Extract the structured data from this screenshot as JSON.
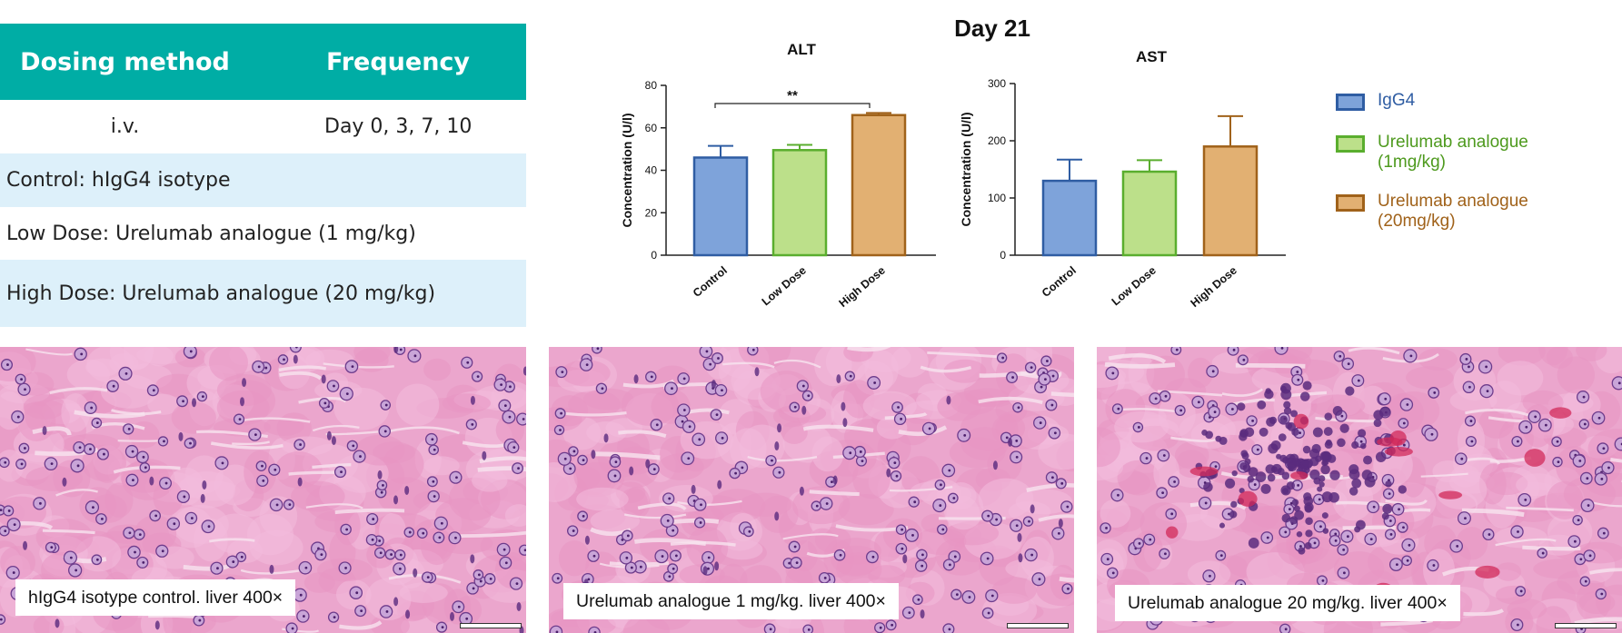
{
  "table": {
    "headers": [
      "Dosing method",
      "Frequency"
    ],
    "dosing_row": [
      "i.v.",
      "Day 0, 3, 7, 10"
    ],
    "groups": [
      "Control: hIgG4 isotype",
      "Low Dose: Urelumab analogue (1 mg/kg)",
      "High Dose: Urelumab analogue (20 mg/kg)"
    ]
  },
  "figure_title": "Day 21",
  "legend": [
    {
      "label": "IgG4",
      "fill": "#7EA3DA",
      "stroke": "#2F5DA3",
      "text_color": "#2F5DA3"
    },
    {
      "label": "Urelumab analogue (1mg/kg)",
      "fill": "#BCE08A",
      "stroke": "#5AAE2E",
      "text_color": "#4E9A1E"
    },
    {
      "label": "Urelumab analogue (20mg/kg)",
      "fill": "#E2B072",
      "stroke": "#A0621A",
      "text_color": "#A0621A"
    }
  ],
  "chart_data": [
    {
      "type": "bar",
      "title": "ALT",
      "ylabel": "Concentration (U/l)",
      "xlabel": "",
      "categories": [
        "Control",
        "Low Dose",
        "High Dose"
      ],
      "values": [
        46,
        49.5,
        66
      ],
      "errors": [
        5.5,
        2.5,
        1
      ],
      "ylim": [
        0,
        80
      ],
      "yticks": [
        0,
        20,
        40,
        60,
        80
      ],
      "significance": {
        "from": "Control",
        "to": "High Dose",
        "label": "**"
      },
      "grid": false
    },
    {
      "type": "bar",
      "title": "AST",
      "ylabel": "Concentration (U/l)",
      "xlabel": "",
      "categories": [
        "Control",
        "Low Dose",
        "High Dose"
      ],
      "values": [
        130,
        146,
        190
      ],
      "errors": [
        37,
        20,
        53
      ],
      "ylim": [
        0,
        300
      ],
      "yticks": [
        0,
        100,
        200,
        300
      ],
      "grid": false
    }
  ],
  "histology": [
    {
      "caption": "hIgG4 isotype control. liver 400×",
      "tone": "normal"
    },
    {
      "caption": "Urelumab  analogue 1 mg/kg. liver 400×",
      "tone": "normal"
    },
    {
      "caption": "Urelumab  analogue 20 mg/kg. liver 400×",
      "tone": "inflamed"
    }
  ]
}
